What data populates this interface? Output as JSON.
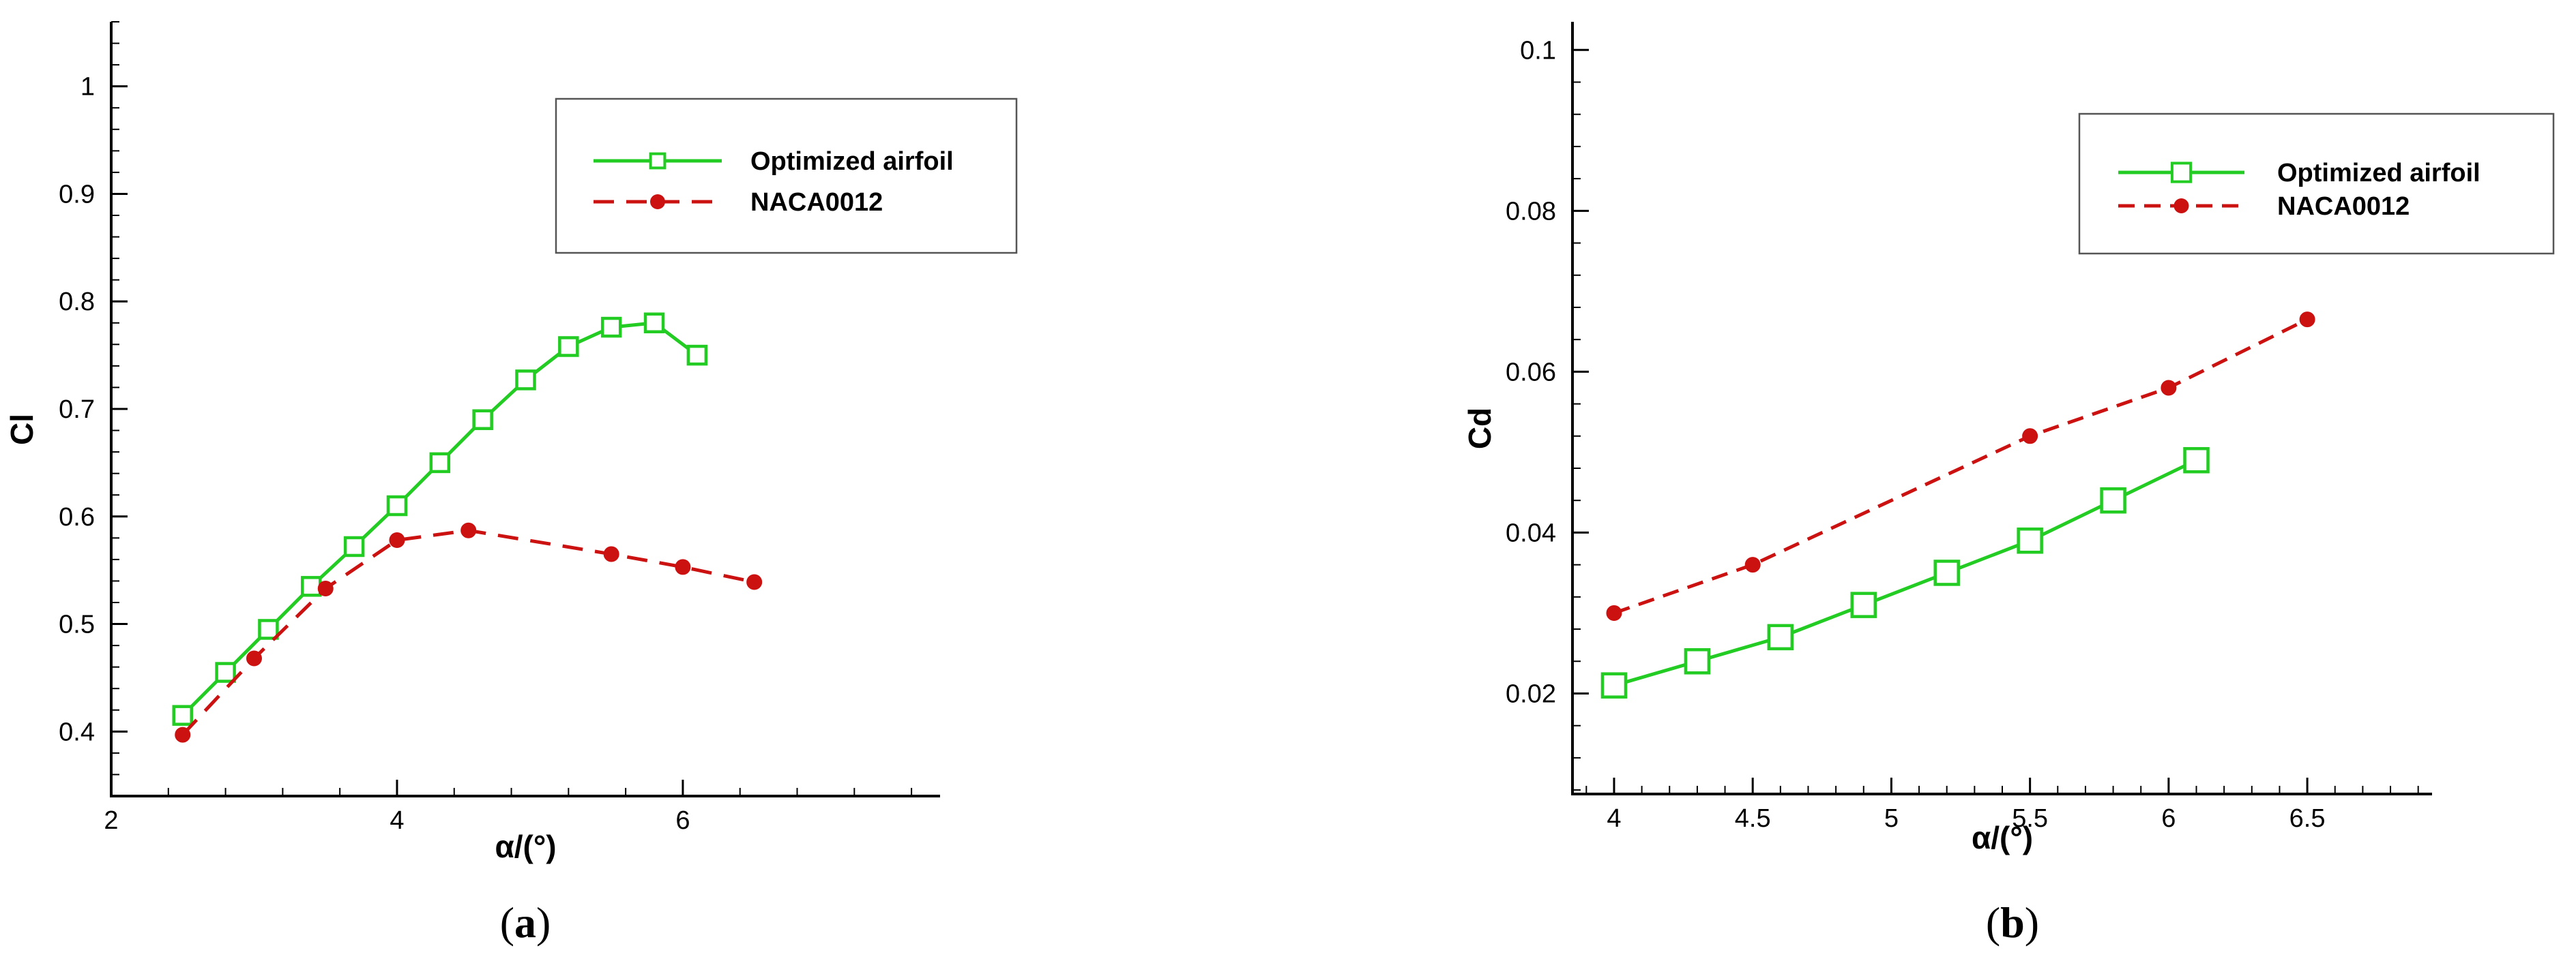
{
  "chart_data": [
    {
      "type": "line",
      "panel_label": {
        "open": "(",
        "letter": "a",
        "close": ")"
      },
      "xlabel": "α/(°)",
      "ylabel": "Cl",
      "xlim": [
        2,
        7.8
      ],
      "ylim": [
        0.34,
        1.06
      ],
      "x_ticks": [
        {
          "value": 2,
          "label": "2"
        },
        {
          "value": 4,
          "label": "4"
        },
        {
          "value": 6,
          "label": "6"
        }
      ],
      "y_ticks": [
        {
          "value": 0.4,
          "label": "0.4"
        },
        {
          "value": 0.5,
          "label": "0.5"
        },
        {
          "value": 0.6,
          "label": "0.6"
        },
        {
          "value": 0.7,
          "label": "0.7"
        },
        {
          "value": 0.8,
          "label": "0.8"
        },
        {
          "value": 0.9,
          "label": "0.9"
        },
        {
          "value": 1.0,
          "label": "1"
        }
      ],
      "x_minor_step": 0.4,
      "y_minor_step": 0.02,
      "grid": false,
      "legend_position": "top-right",
      "series": [
        {
          "name": "Optimized airfoil",
          "color": "#22cc22",
          "line_style": "solid",
          "marker": "square",
          "points": [
            [
              2.5,
              0.415
            ],
            [
              2.8,
              0.455
            ],
            [
              3.1,
              0.495
            ],
            [
              3.4,
              0.535
            ],
            [
              3.7,
              0.572
            ],
            [
              4.0,
              0.61
            ],
            [
              4.3,
              0.65
            ],
            [
              4.6,
              0.69
            ],
            [
              4.9,
              0.727
            ],
            [
              5.2,
              0.758
            ],
            [
              5.5,
              0.776
            ],
            [
              5.8,
              0.78
            ],
            [
              6.1,
              0.75
            ]
          ]
        },
        {
          "name": "NACA0012",
          "color": "#cc1111",
          "line_style": "dashed",
          "marker": "circle",
          "points": [
            [
              2.5,
              0.397
            ],
            [
              3.0,
              0.468
            ],
            [
              3.5,
              0.533
            ],
            [
              4.0,
              0.578
            ],
            [
              4.5,
              0.587
            ],
            [
              5.5,
              0.565
            ],
            [
              6.0,
              0.553
            ],
            [
              6.5,
              0.539
            ]
          ]
        }
      ]
    },
    {
      "type": "line",
      "panel_label": {
        "open": "(",
        "letter": "b",
        "close": ")"
      },
      "xlabel": "α/(°)",
      "ylabel": "Cd",
      "xlim": [
        3.85,
        6.95
      ],
      "ylim": [
        0.0075,
        0.1035
      ],
      "x_ticks": [
        {
          "value": 4,
          "label": "4"
        },
        {
          "value": 4.5,
          "label": "4.5"
        },
        {
          "value": 5,
          "label": "5"
        },
        {
          "value": 5.5,
          "label": "5.5"
        },
        {
          "value": 6,
          "label": "6"
        },
        {
          "value": 6.5,
          "label": "6.5"
        }
      ],
      "y_ticks": [
        {
          "value": 0.02,
          "label": "0.02"
        },
        {
          "value": 0.04,
          "label": "0.04"
        },
        {
          "value": 0.06,
          "label": "0.06"
        },
        {
          "value": 0.08,
          "label": "0.08"
        },
        {
          "value": 0.1,
          "label": "0.1"
        }
      ],
      "x_minor_step": 0.1,
      "y_minor_step": 0.004,
      "grid": false,
      "legend_position": "top-right",
      "series": [
        {
          "name": "Optimized airfoil",
          "color": "#22cc22",
          "line_style": "solid",
          "marker": "square",
          "points": [
            [
              4.0,
              0.021
            ],
            [
              4.3,
              0.024
            ],
            [
              4.6,
              0.027
            ],
            [
              4.9,
              0.031
            ],
            [
              5.2,
              0.035
            ],
            [
              5.5,
              0.039
            ],
            [
              5.8,
              0.044
            ],
            [
              6.1,
              0.049
            ]
          ]
        },
        {
          "name": "NACA0012",
          "color": "#cc1111",
          "line_style": "dashed",
          "marker": "circle",
          "points": [
            [
              4.0,
              0.03
            ],
            [
              4.5,
              0.036
            ],
            [
              5.5,
              0.052
            ],
            [
              6.0,
              0.058
            ],
            [
              6.5,
              0.0665
            ]
          ]
        }
      ]
    }
  ]
}
